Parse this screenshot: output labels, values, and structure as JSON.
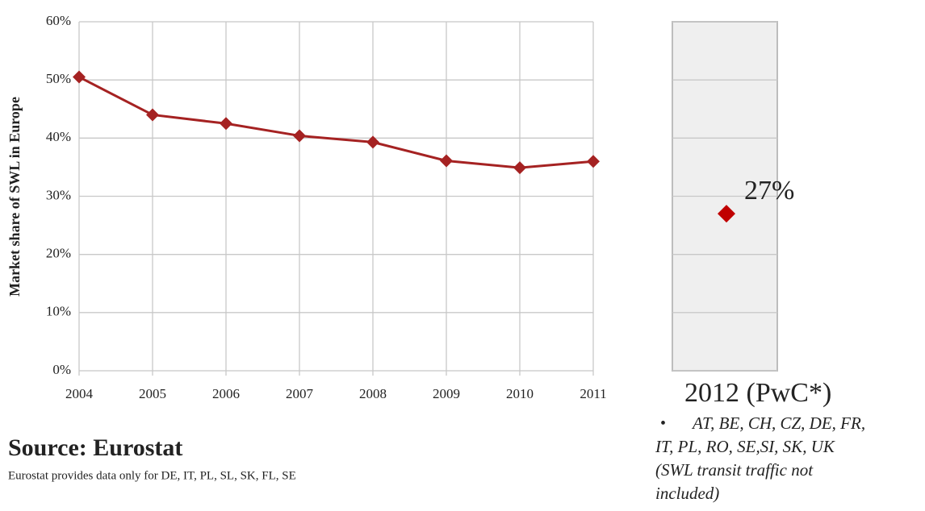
{
  "chart_data": {
    "type": "line",
    "y_label": "Market share of SWL in Europe",
    "categories": [
      "2004",
      "2005",
      "2006",
      "2007",
      "2008",
      "2009",
      "2010",
      "2011"
    ],
    "series": [
      {
        "color": "#a52222",
        "values": [
          50.5,
          44,
          42.5,
          40.4,
          39.3,
          36.1,
          34.9,
          36
        ]
      }
    ],
    "ylim": [
      0,
      60
    ],
    "yticks": [
      {
        "value": 0,
        "label": "0%"
      },
      {
        "value": 10,
        "label": "10%"
      },
      {
        "value": 20,
        "label": "20%"
      },
      {
        "value": 30,
        "label": "30%"
      },
      {
        "value": 40,
        "label": "40%"
      },
      {
        "value": 50,
        "label": "50%"
      },
      {
        "value": 60,
        "label": "60%"
      }
    ],
    "grid": true,
    "highlight": {
      "label": "2012 (PwC*)",
      "value": 27,
      "value_label": "27%",
      "color": "#c00000",
      "bullet": "•",
      "note": [
        "AT, BE, CH, CZ, DE, FR,",
        "IT, PL, RO, SE,SI, SK, UK",
        "(SWL transit traffic not",
        "included)"
      ]
    },
    "source": "Source: Eurostat",
    "footnote": "Eurostat provides data only for DE, IT, PL, SL, SK, FL, SE"
  }
}
